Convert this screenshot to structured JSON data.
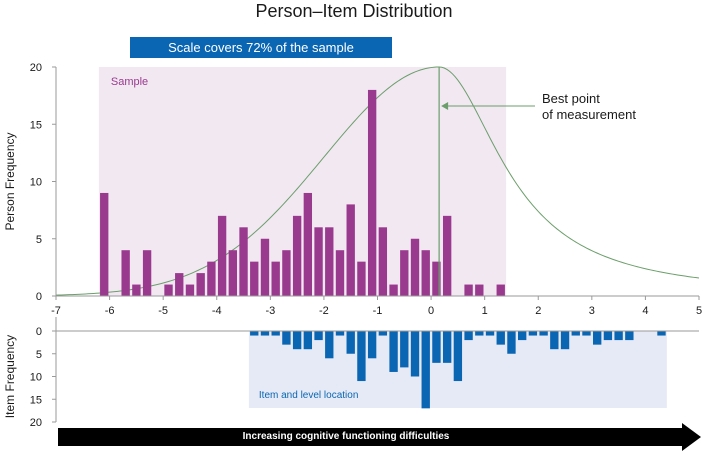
{
  "colors": {
    "sample_fill": "#f2e8f2",
    "sample_bar": "#9a3a8e",
    "item_fill": "#e6eaf6",
    "item_bar": "#0a66b3",
    "curve": "#6b9e6b",
    "banner_bg": "#0a66b3",
    "arrow": "#000000",
    "axis": "#9a9a9a"
  },
  "title": "Person–Item Distribution",
  "banner": "Scale covers 72% of the sample",
  "direction_arrow": "Increasing cognitive functioning difficulties",
  "chart_data": {
    "type": "bar",
    "x_axis": {
      "range": [
        -7,
        5
      ],
      "ticks": [
        -7,
        -6,
        -5,
        -4,
        -3,
        -2,
        -1,
        0,
        1,
        2,
        3,
        4,
        5
      ]
    },
    "person_panel": {
      "ylabel": "Person Frequency",
      "ylim": [
        0,
        20
      ],
      "yticks": [
        0,
        5,
        10,
        15,
        20
      ],
      "region_label": "Sample",
      "region_range": [
        -6.2,
        1.4
      ],
      "bin_width": 0.2,
      "x": [
        -6.1,
        -5.7,
        -5.5,
        -5.3,
        -4.9,
        -4.7,
        -4.5,
        -4.3,
        -4.1,
        -3.9,
        -3.7,
        -3.5,
        -3.3,
        -3.1,
        -2.9,
        -2.7,
        -2.5,
        -2.3,
        -2.1,
        -1.9,
        -1.7,
        -1.5,
        -1.3,
        -1.1,
        -0.9,
        -0.7,
        -0.5,
        -0.3,
        -0.1,
        0.1,
        0.3,
        0.7,
        0.9,
        1.3
      ],
      "values": [
        9,
        4,
        1,
        4,
        1,
        2,
        1,
        2,
        3,
        7,
        4,
        6,
        3,
        5,
        3,
        4,
        7,
        9,
        6,
        6,
        4,
        8,
        3,
        18,
        6,
        1,
        4,
        5,
        4,
        3,
        7,
        1,
        1,
        1
      ],
      "curve_peak_x": 0.15,
      "curve_peak_y": 20,
      "annotation": [
        "Best point",
        "of measurement"
      ]
    },
    "item_panel": {
      "ylabel": "Item Frequency",
      "ylim": [
        0,
        20
      ],
      "yticks": [
        0,
        5,
        10,
        15,
        20
      ],
      "inverted": true,
      "region_label": "Item and level location",
      "region_range": [
        -3.4,
        4.4
      ],
      "bin_width": 0.2,
      "x": [
        -3.3,
        -3.1,
        -2.9,
        -2.7,
        -2.5,
        -2.3,
        -2.1,
        -1.9,
        -1.7,
        -1.5,
        -1.3,
        -1.1,
        -0.9,
        -0.7,
        -0.5,
        -0.3,
        -0.1,
        0.1,
        0.3,
        0.5,
        0.7,
        0.9,
        1.1,
        1.3,
        1.5,
        1.7,
        1.9,
        2.1,
        2.3,
        2.5,
        2.7,
        2.9,
        3.1,
        3.3,
        3.5,
        3.7,
        4.3
      ],
      "values": [
        1,
        1,
        1,
        3,
        4,
        4,
        2,
        6,
        1,
        5,
        11,
        6,
        1,
        9,
        8,
        10,
        17,
        7,
        7,
        11,
        2,
        1,
        1,
        3,
        5,
        2,
        1,
        1,
        4,
        4,
        1,
        1,
        3,
        2,
        2,
        2,
        1
      ]
    }
  }
}
